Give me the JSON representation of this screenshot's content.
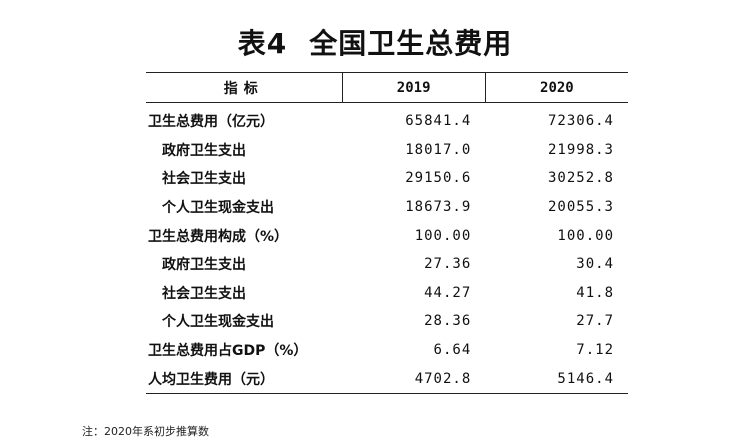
{
  "title": {
    "number": "表4",
    "text": "全国卫生总费用"
  },
  "table": {
    "headers": [
      "指标",
      "2019",
      "2020"
    ],
    "rows": [
      {
        "label": "卫生总费用（亿元）",
        "indent": false,
        "v2019": "65841.4",
        "v2020": "72306.4"
      },
      {
        "label": "政府卫生支出",
        "indent": true,
        "v2019": "18017.0",
        "v2020": "21998.3"
      },
      {
        "label": "社会卫生支出",
        "indent": true,
        "v2019": "29150.6",
        "v2020": "30252.8"
      },
      {
        "label": "个人卫生现金支出",
        "indent": true,
        "v2019": "18673.9",
        "v2020": "20055.3"
      },
      {
        "label": "卫生总费用构成（%）",
        "indent": false,
        "v2019": "100.00",
        "v2020": "100.00"
      },
      {
        "label": "政府卫生支出",
        "indent": true,
        "v2019": "27.36",
        "v2020": "30.4"
      },
      {
        "label": "社会卫生支出",
        "indent": true,
        "v2019": "44.27",
        "v2020": "41.8"
      },
      {
        "label": "个人卫生现金支出",
        "indent": true,
        "v2019": "28.36",
        "v2020": "27.7"
      },
      {
        "label": "卫生总费用占GDP（%）",
        "indent": false,
        "v2019": "6.64",
        "v2020": "7.12"
      },
      {
        "label": "人均卫生费用（元）",
        "indent": false,
        "v2019": "4702.8",
        "v2020": "5146.4"
      }
    ]
  },
  "note": "注：2020年系初步推算数"
}
